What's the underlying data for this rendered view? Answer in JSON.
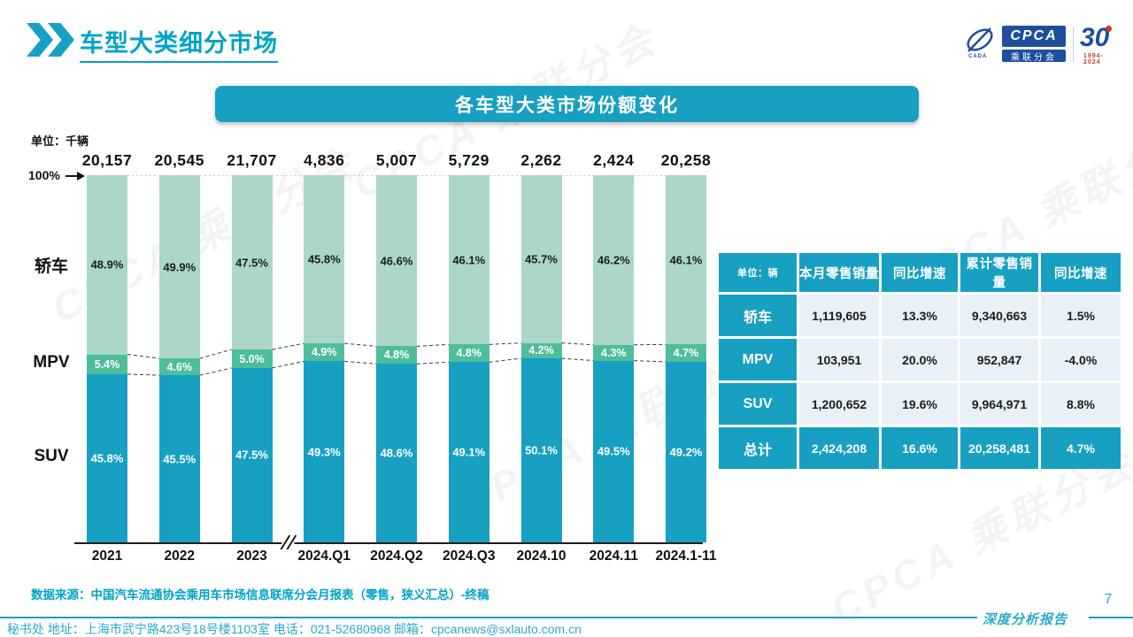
{
  "header": {
    "title": "车型大类细分市场"
  },
  "logo": {
    "cpca": "CPCA",
    "sub": "乘联分会",
    "cada": "CADA",
    "anniversary": "30",
    "years": "1994-2024"
  },
  "banner": {
    "title": "各车型大类市场份额变化"
  },
  "chart_data": {
    "type": "bar",
    "stacked": true,
    "unit_label": "单位：千辆",
    "axis_label_100": "100%",
    "categories": [
      "2021",
      "2022",
      "2023",
      "2024.Q1",
      "2024.Q2",
      "2024.Q3",
      "2024.10",
      "2024.11",
      "2024.1-11"
    ],
    "totals": [
      "20,157",
      "20,545",
      "21,707",
      "4,836",
      "5,007",
      "5,729",
      "2,262",
      "2,424",
      "20,258"
    ],
    "series": [
      {
        "key": "sedan",
        "name": "轿车",
        "color": "#AAD7C9",
        "label_color": "#1c1c1c",
        "values": [
          48.9,
          49.9,
          47.5,
          45.8,
          46.6,
          46.1,
          45.7,
          46.2,
          46.1
        ]
      },
      {
        "key": "mpv",
        "name": "MPV",
        "color": "#4EBD9C",
        "label_color": "#ffffff",
        "values": [
          5.4,
          4.6,
          5.0,
          4.9,
          4.8,
          4.8,
          4.2,
          4.3,
          4.7
        ]
      },
      {
        "key": "suv",
        "name": "SUV",
        "color": "#17A0C2",
        "label_color": "#ffffff",
        "values": [
          45.8,
          45.5,
          47.5,
          49.3,
          48.6,
          49.1,
          50.1,
          49.5,
          49.2
        ]
      }
    ],
    "ylim": [
      0,
      100
    ],
    "axis_break_after": 2,
    "legend_position": "left"
  },
  "table": {
    "header": [
      "单位：辆",
      "本月零售销量",
      "同比增速",
      "累计零售销量",
      "同比增速"
    ],
    "rows": [
      {
        "label": "轿车",
        "cells": [
          "1,119,605",
          "13.3%",
          "9,340,663",
          "1.5%"
        ],
        "total": false
      },
      {
        "label": "MPV",
        "cells": [
          "103,951",
          "20.0%",
          "952,847",
          "-4.0%"
        ],
        "total": false
      },
      {
        "label": "SUV",
        "cells": [
          "1,200,652",
          "19.6%",
          "9,964,971",
          "8.8%"
        ],
        "total": false
      },
      {
        "label": "总计",
        "cells": [
          "2,424,208",
          "16.6%",
          "20,258,481",
          "4.7%"
        ],
        "total": true
      }
    ]
  },
  "footer": {
    "source": "数据来源：中国汽车流通协会乘用车市场信息联席分会月报表（零售，狭义汇总）-终稿",
    "report_label": "深度分析报告",
    "page": "7",
    "contact": "秘书处  地址：上海市武宁路423号18号楼1103室 电话：021-52680968  邮箱：cpcanews@sxlauto.com.cn"
  },
  "watermark": "CPCA 乘联分会",
  "colors": {
    "accent": "#17A0C2",
    "title": "#00A3C9",
    "footer": "#2BA9CB",
    "cellBg": "#E8F1F8",
    "logoBlue": "#1F4E9D",
    "logoRed": "#C23B2E"
  }
}
